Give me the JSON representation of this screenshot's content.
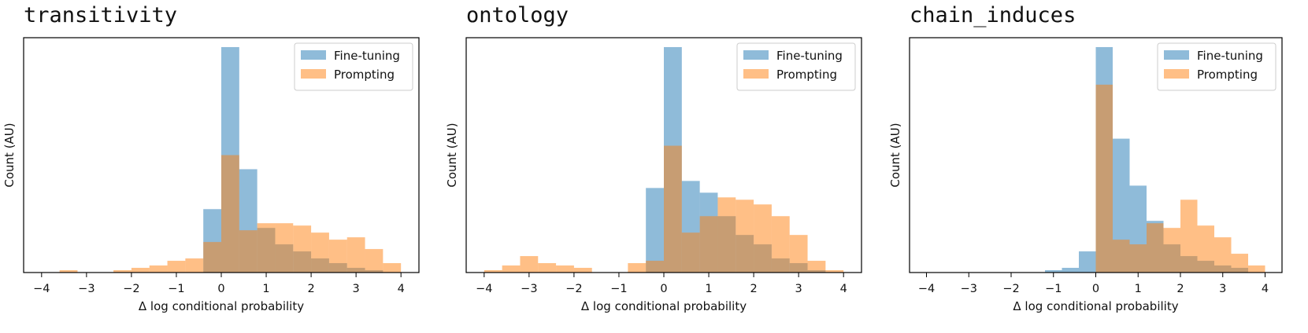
{
  "chart_data": [
    {
      "type": "histogram",
      "title": "transitivity",
      "xlabel": "Δ log conditional probability",
      "ylabel": "Count (AU)",
      "xlim": [
        -4.4,
        4.4
      ],
      "ylim": [
        0,
        1.0
      ],
      "xticks": [
        -4,
        -3,
        -2,
        -1,
        0,
        1,
        2,
        3,
        4
      ],
      "xtick_labels": [
        "−4",
        "−3",
        "−2",
        "−1",
        "0",
        "1",
        "2",
        "3",
        "4"
      ],
      "yticks_shown": false,
      "bin_edges": [
        -4.0,
        -3.6,
        -3.2,
        -2.8,
        -2.4,
        -2.0,
        -1.6,
        -1.2,
        -0.8,
        -0.4,
        0.0,
        0.4,
        0.8,
        1.2,
        1.6,
        2.0,
        2.4,
        2.8,
        3.2,
        3.6,
        4.0
      ],
      "legend_position": "upper right",
      "series": [
        {
          "name": "Fine-tuning",
          "color": "#1f77b4",
          "alpha": 0.5,
          "values": [
            0,
            0,
            0,
            0,
            0,
            0,
            0,
            0,
            0,
            0.27,
            0.96,
            0.44,
            0.19,
            0.12,
            0.09,
            0.06,
            0.04,
            0.02,
            0.01,
            0
          ]
        },
        {
          "name": "Prompting",
          "color": "#ff7f0e",
          "alpha": 0.5,
          "values": [
            0,
            0.01,
            0,
            0,
            0.01,
            0.02,
            0.03,
            0.05,
            0.06,
            0.13,
            0.5,
            0.18,
            0.21,
            0.21,
            0.2,
            0.17,
            0.14,
            0.15,
            0.1,
            0.04
          ]
        }
      ]
    },
    {
      "type": "histogram",
      "title": "ontology",
      "xlabel": "Δ log conditional probability",
      "ylabel": "Count (AU)",
      "xlim": [
        -4.4,
        4.4
      ],
      "ylim": [
        0,
        1.0
      ],
      "xticks": [
        -4,
        -3,
        -2,
        -1,
        0,
        1,
        2,
        3,
        4
      ],
      "xtick_labels": [
        "−4",
        "−3",
        "−2",
        "−1",
        "0",
        "1",
        "2",
        "3",
        "4"
      ],
      "yticks_shown": false,
      "bin_edges": [
        -4.0,
        -3.6,
        -3.2,
        -2.8,
        -2.4,
        -2.0,
        -1.6,
        -1.2,
        -0.8,
        -0.4,
        0.0,
        0.4,
        0.8,
        1.2,
        1.6,
        2.0,
        2.4,
        2.8,
        3.2,
        3.6,
        4.0
      ],
      "legend_position": "upper right",
      "series": [
        {
          "name": "Fine-tuning",
          "color": "#1f77b4",
          "alpha": 0.5,
          "values": [
            0,
            0,
            0,
            0,
            0,
            0,
            0,
            0,
            0,
            0.36,
            0.96,
            0.39,
            0.34,
            0.24,
            0.16,
            0.12,
            0.06,
            0.04,
            0.01,
            0
          ]
        },
        {
          "name": "Prompting",
          "color": "#ff7f0e",
          "alpha": 0.5,
          "values": [
            0.01,
            0.03,
            0.07,
            0.04,
            0.03,
            0.02,
            0,
            0,
            0.04,
            0.05,
            0.54,
            0.17,
            0.24,
            0.32,
            0.31,
            0.29,
            0.24,
            0.16,
            0.05,
            0.01
          ]
        }
      ]
    },
    {
      "type": "histogram",
      "title": "chain_induces",
      "xlabel": "Δ log conditional probability",
      "ylabel": "Count (AU)",
      "xlim": [
        -4.4,
        4.4
      ],
      "ylim": [
        0,
        1.0
      ],
      "xticks": [
        -4,
        -3,
        -2,
        -1,
        0,
        1,
        2,
        3,
        4
      ],
      "xtick_labels": [
        "−4",
        "−3",
        "−2",
        "−1",
        "0",
        "1",
        "2",
        "3",
        "4"
      ],
      "yticks_shown": false,
      "bin_edges": [
        -4.0,
        -3.6,
        -3.2,
        -2.8,
        -2.4,
        -2.0,
        -1.6,
        -1.2,
        -0.8,
        -0.4,
        0.0,
        0.4,
        0.8,
        1.2,
        1.6,
        2.0,
        2.4,
        2.8,
        3.2,
        3.6,
        4.0
      ],
      "legend_position": "upper right",
      "series": [
        {
          "name": "Fine-tuning",
          "color": "#1f77b4",
          "alpha": 0.5,
          "values": [
            0,
            0,
            0,
            0,
            0,
            0,
            0,
            0.01,
            0.02,
            0.09,
            0.96,
            0.57,
            0.37,
            0.22,
            0.12,
            0.07,
            0.05,
            0.03,
            0.02,
            0
          ]
        },
        {
          "name": "Prompting",
          "color": "#ff7f0e",
          "alpha": 0.5,
          "values": [
            0,
            0,
            0,
            0,
            0,
            0,
            0,
            0,
            0,
            0,
            0.8,
            0.14,
            0.12,
            0.21,
            0.19,
            0.31,
            0.2,
            0.15,
            0.08,
            0.03
          ]
        }
      ]
    }
  ]
}
